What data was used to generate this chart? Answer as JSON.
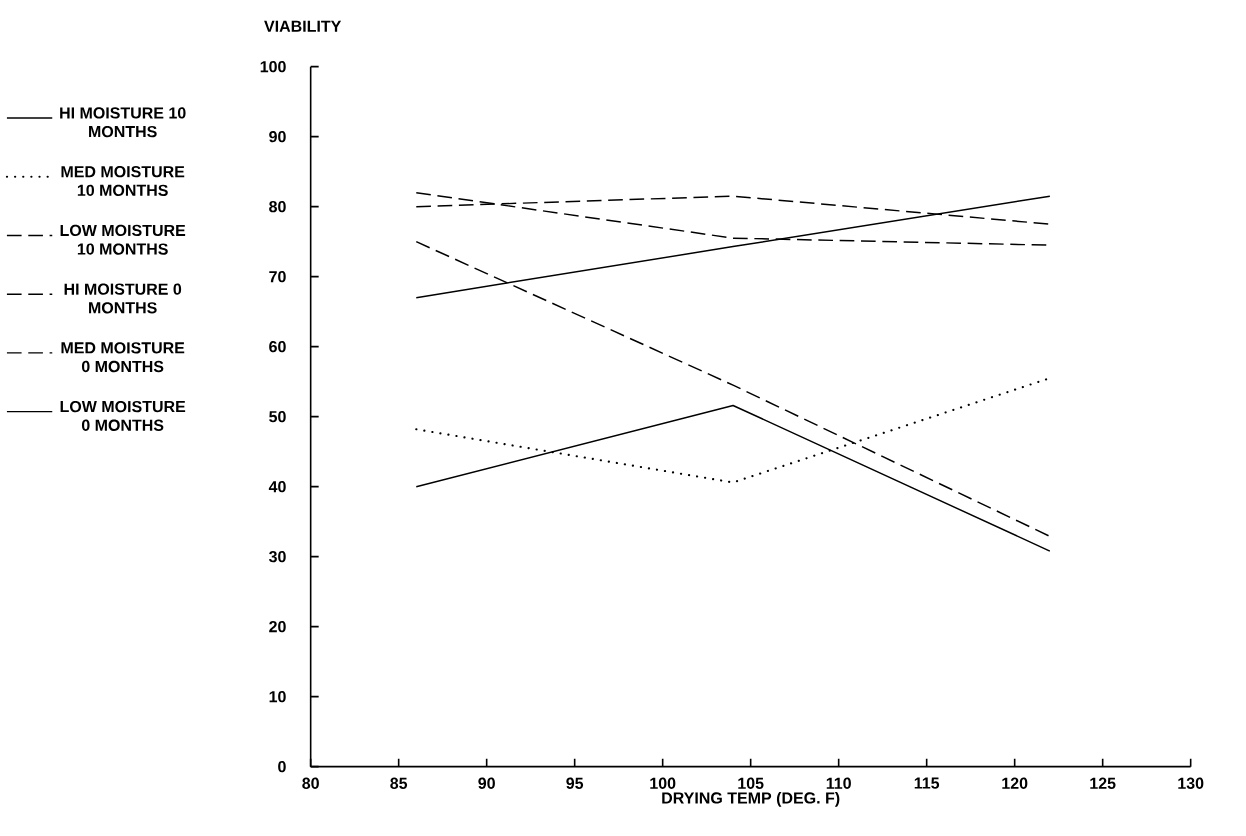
{
  "chart_data": {
    "type": "line",
    "xlabel": "DRYING TEMP (DEG. F)",
    "ylabel": "VIABILITY",
    "x": [
      86,
      104,
      122
    ],
    "xlim": [
      80,
      130
    ],
    "xticks": [
      80,
      85,
      90,
      95,
      100,
      105,
      110,
      115,
      120,
      125,
      130
    ],
    "ylim": [
      0,
      100
    ],
    "yticks": [
      0,
      10,
      20,
      30,
      40,
      50,
      60,
      70,
      80,
      90,
      100
    ],
    "legend": "left",
    "series": [
      {
        "name": "HI MOISTURE 10 MONTHS",
        "color": "#000000",
        "line_style": "solid",
        "values": [
          40,
          51.6,
          30.8
        ]
      },
      {
        "name": "MED MOISTURE 10 MONTHS",
        "color": "#000000",
        "line_style": "dotted",
        "values": [
          48.2,
          40.6,
          55.5
        ]
      },
      {
        "name": "LOW MOISTURE 10 MONTHS",
        "color": "#000000",
        "line_style": "dashed",
        "values": [
          75,
          54.5,
          32.9
        ]
      },
      {
        "name": "HI MOISTURE 0 MONTHS",
        "color": "#000000",
        "line_style": "dashed",
        "values": [
          82,
          75.5,
          74.5
        ]
      },
      {
        "name": "MED MOISTURE 0 MONTHS",
        "color": "#000000",
        "line_style": "dashed",
        "values": [
          80,
          81.5,
          77.5
        ]
      },
      {
        "name": "LOW MOISTURE 0 MONTHS",
        "color": "#000000",
        "line_style": "solid",
        "values": [
          67,
          74.3,
          81.5
        ]
      }
    ]
  }
}
